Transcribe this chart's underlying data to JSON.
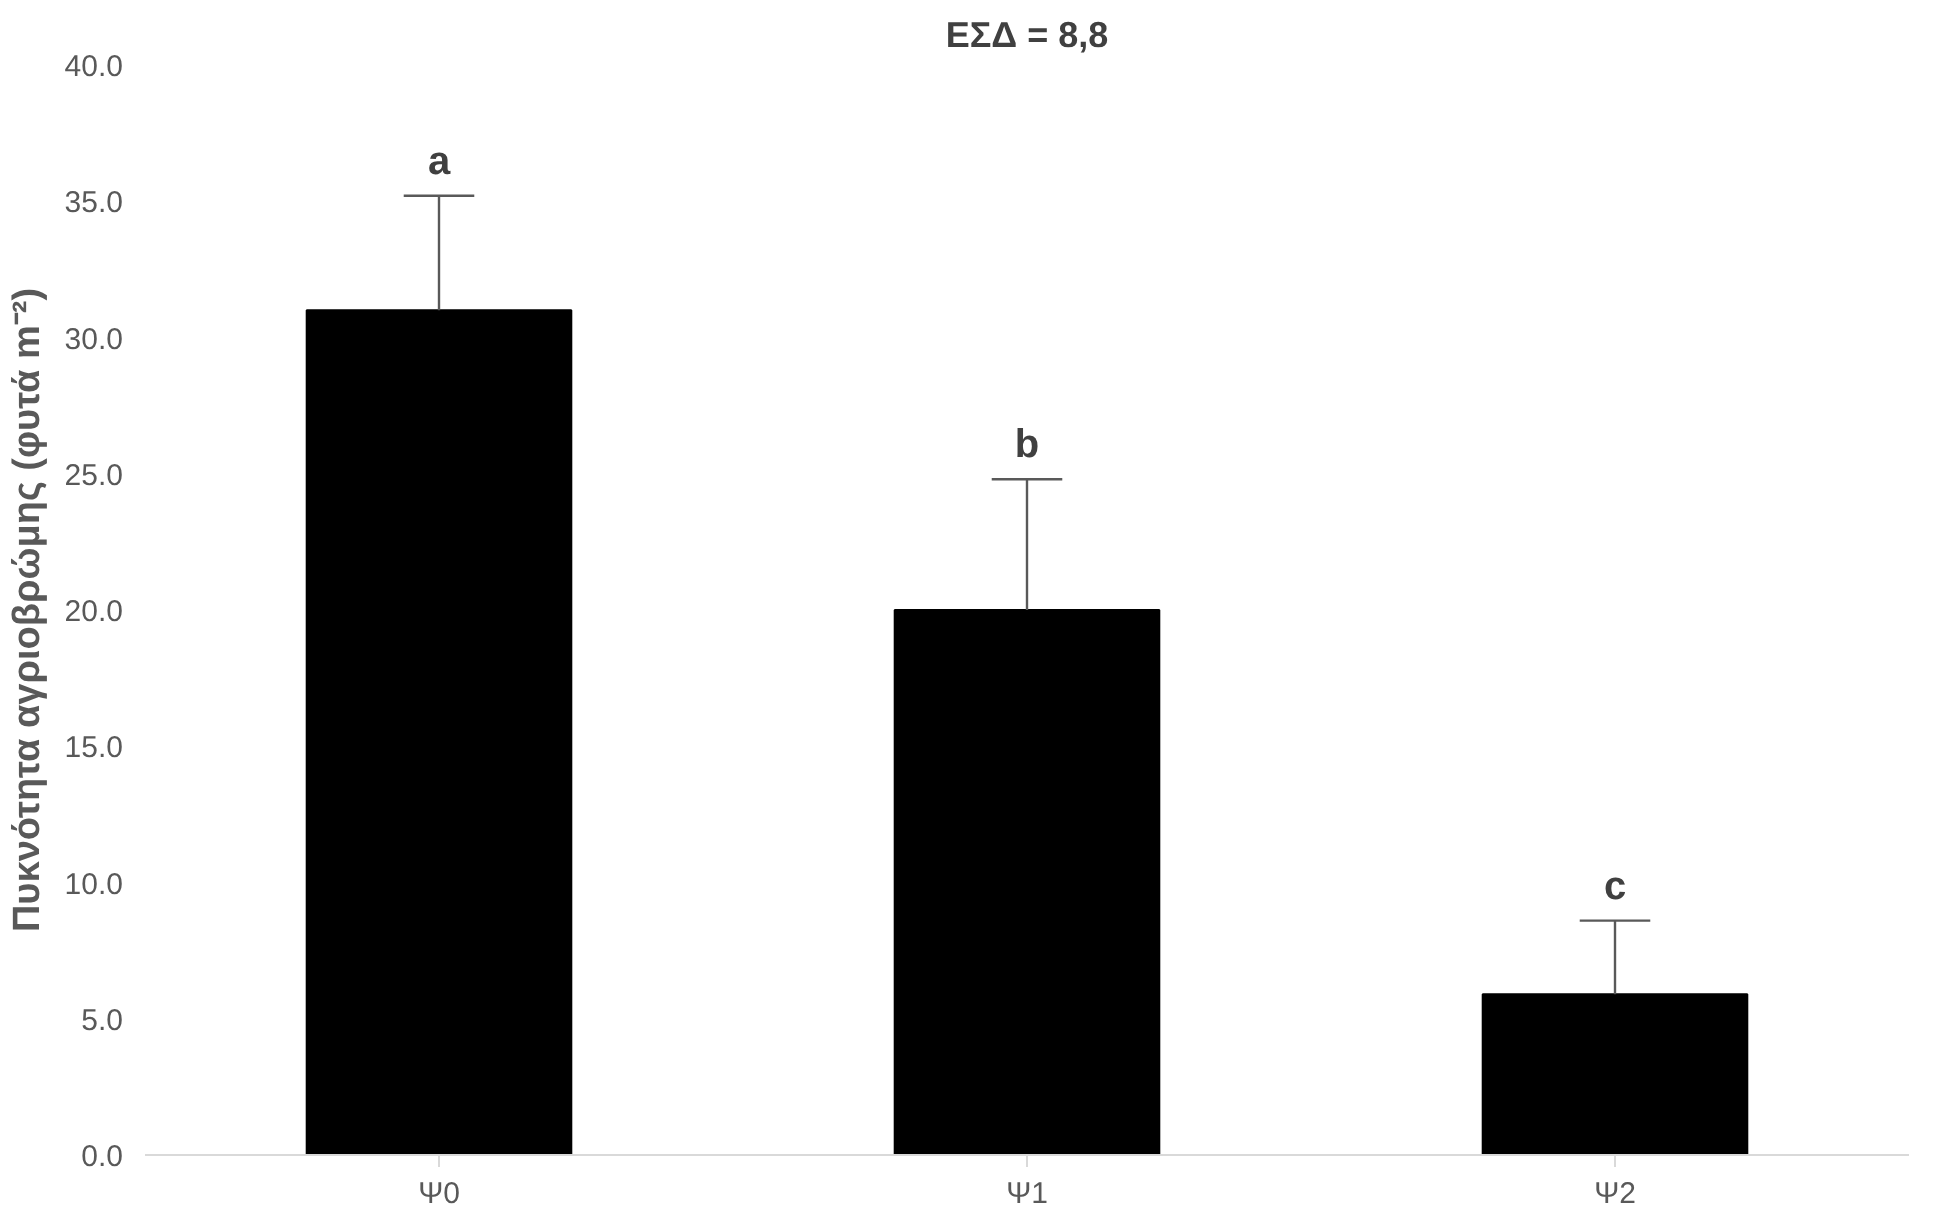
{
  "chart_data": {
    "type": "bar",
    "title": "ΕΣΔ = 8,8",
    "ylabel": "Πυκνότητα αγριοβρώμης (φυτά m⁻²)",
    "categories": [
      "Ψ0",
      "Ψ1",
      "Ψ2"
    ],
    "values": [
      31.0,
      20.0,
      5.9
    ],
    "errors": [
      [
        31.0,
        35.2
      ],
      [
        20.0,
        24.8
      ],
      [
        5.9,
        8.6
      ]
    ],
    "color": "#000000",
    "ylim": [
      0,
      40
    ],
    "yticks": [
      {
        "value": 0,
        "label": "0.0"
      },
      {
        "value": 5,
        "label": "5.0"
      },
      {
        "value": 10,
        "label": "10.0"
      },
      {
        "value": 15,
        "label": "15.0"
      },
      {
        "value": 20,
        "label": "20.0"
      },
      {
        "value": 25,
        "label": "25.0"
      },
      {
        "value": 30,
        "label": "30.0"
      },
      {
        "value": 35,
        "label": "35.0"
      },
      {
        "value": 40,
        "label": "40.0"
      }
    ],
    "annotations": [
      "a",
      "b",
      "c"
    ],
    "grid": false
  }
}
